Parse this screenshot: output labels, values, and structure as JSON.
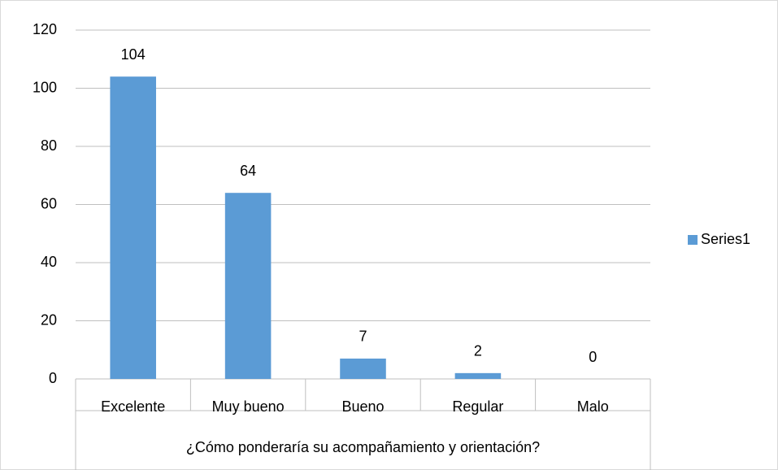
{
  "chart_data": {
    "type": "bar",
    "categories": [
      "Excelente",
      "Muy bueno",
      "Bueno",
      "Regular",
      "Malo"
    ],
    "series": [
      {
        "name": "Series1",
        "color": "#5b9bd5",
        "values": [
          104,
          64,
          7,
          2,
          0
        ]
      }
    ],
    "xlabel": "¿Cómo ponderaría su acompañamiento y orientación?",
    "ylim": [
      0,
      120
    ],
    "yticks": [
      0,
      20,
      40,
      60,
      80,
      100,
      120
    ],
    "grid": true,
    "legend": "right",
    "data_labels": true
  }
}
